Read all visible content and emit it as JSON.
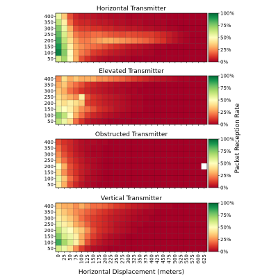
{
  "chart_data": [
    {
      "type": "heatmap",
      "title": "Horizontal Transmitter",
      "x_ticks": [
        "0",
        "25",
        "50",
        "75",
        "100",
        "125",
        "150",
        "175",
        "200",
        "225",
        "250",
        "275",
        "300",
        "325",
        "350",
        "375",
        "400",
        "425",
        "450",
        "475",
        "500",
        "525",
        "550",
        "575",
        "600",
        "625"
      ],
      "y_ticks": [
        "400",
        "350",
        "300",
        "250",
        "200",
        "150",
        "100",
        "50"
      ],
      "rows": [
        [
          0.55,
          0.35,
          0.15,
          0.08,
          0.05,
          0.05,
          0.04,
          0.03,
          0.03,
          0.02,
          0.02,
          0.02,
          0.01,
          0.01,
          0.01,
          0.01,
          0.01,
          0.01,
          0.0,
          0.0,
          0.0,
          0.0,
          0.0,
          0.0,
          0.0,
          0.0
        ],
        [
          0.65,
          0.45,
          0.2,
          0.1,
          0.08,
          0.08,
          0.06,
          0.05,
          0.05,
          0.04,
          0.03,
          0.03,
          0.02,
          0.02,
          0.02,
          0.01,
          0.01,
          0.01,
          0.01,
          0.0,
          0.0,
          0.0,
          0.0,
          0.0,
          0.0,
          0.0
        ],
        [
          0.75,
          0.55,
          0.3,
          0.15,
          0.12,
          0.12,
          0.1,
          0.1,
          0.08,
          0.08,
          0.06,
          0.06,
          0.05,
          0.05,
          0.04,
          0.03,
          0.03,
          0.02,
          0.02,
          0.01,
          0.01,
          0.0,
          0.0,
          0.0,
          0.0,
          0.0
        ],
        [
          0.8,
          0.6,
          0.35,
          0.22,
          0.18,
          0.18,
          0.2,
          0.2,
          0.18,
          0.16,
          0.15,
          0.14,
          0.15,
          0.14,
          0.13,
          0.12,
          0.12,
          0.1,
          0.08,
          0.06,
          0.04,
          0.02,
          0.01,
          0.0,
          0.0,
          0.0
        ],
        [
          0.85,
          0.65,
          0.4,
          0.28,
          0.22,
          0.22,
          0.25,
          0.28,
          0.3,
          0.3,
          0.28,
          0.26,
          0.24,
          0.22,
          0.2,
          0.18,
          0.15,
          0.12,
          0.1,
          0.06,
          0.04,
          0.02,
          0.01,
          0.0,
          0.0,
          0.0
        ],
        [
          0.9,
          0.7,
          0.45,
          0.3,
          0.25,
          0.22,
          0.2,
          0.18,
          0.15,
          0.12,
          0.1,
          0.08,
          0.06,
          0.05,
          0.04,
          0.03,
          0.02,
          0.01,
          0.01,
          0.0,
          0.0,
          0.0,
          0.0,
          0.0,
          0.0,
          0.0
        ],
        [
          0.95,
          0.75,
          0.5,
          0.3,
          0.22,
          0.18,
          0.12,
          0.1,
          0.08,
          0.06,
          0.05,
          0.04,
          0.03,
          0.02,
          0.02,
          0.01,
          0.01,
          0.0,
          0.0,
          0.0,
          0.0,
          0.0,
          0.0,
          0.0,
          0.0,
          0.0
        ],
        [
          0.6,
          0.7,
          0.5,
          0.3,
          0.15,
          0.1,
          0.06,
          0.04,
          0.03,
          0.02,
          0.02,
          0.01,
          0.01,
          0.0,
          0.0,
          0.0,
          0.0,
          0.0,
          0.0,
          0.0,
          0.0,
          0.0,
          0.0,
          0.0,
          0.0,
          0.0
        ]
      ]
    },
    {
      "type": "heatmap",
      "title": "Elevated Transmitter",
      "x_ticks": [
        "0",
        "25",
        "50",
        "75",
        "100",
        "125",
        "150",
        "175",
        "200",
        "225",
        "250",
        "275",
        "300",
        "325",
        "350",
        "375",
        "400",
        "425",
        "450",
        "475",
        "500",
        "525",
        "550",
        "575",
        "600",
        "625"
      ],
      "y_ticks": [
        "400",
        "350",
        "300",
        "250",
        "200",
        "150",
        "100",
        "50"
      ],
      "rows": [
        [
          0.25,
          0.4,
          0.3,
          0.35,
          0.3,
          0.3,
          0.3,
          0.25,
          0.25,
          0.22,
          0.2,
          0.18,
          0.15,
          0.12,
          0.1,
          0.08,
          0.06,
          0.05,
          0.04,
          0.03,
          0.02,
          0.01,
          0.01,
          0.0,
          0.0,
          0.0
        ],
        [
          0.3,
          0.35,
          0.25,
          0.2,
          0.15,
          0.1,
          0.08,
          0.06,
          0.05,
          0.04,
          0.03,
          0.02,
          0.02,
          0.01,
          0.01,
          0.0,
          0.0,
          0.0,
          0.0,
          0.0,
          0.0,
          0.0,
          0.0,
          0.0,
          0.0,
          0.0
        ],
        [
          0.35,
          0.3,
          0.2,
          0.15,
          0.1,
          0.08,
          0.06,
          0.05,
          0.04,
          0.03,
          0.02,
          0.02,
          0.01,
          0.01,
          0.0,
          0.0,
          0.0,
          0.0,
          0.0,
          0.0,
          0.0,
          0.0,
          0.0,
          0.0,
          0.0,
          0.0
        ],
        [
          0.4,
          0.35,
          0.3,
          0.25,
          0.45,
          0.15,
          0.1,
          0.08,
          0.06,
          0.05,
          0.04,
          0.03,
          0.02,
          0.01,
          0.01,
          0.0,
          0.0,
          0.0,
          0.0,
          0.0,
          0.0,
          0.0,
          0.0,
          0.0,
          0.0,
          0.0
        ],
        [
          0.45,
          0.4,
          0.45,
          0.4,
          0.35,
          0.12,
          0.1,
          0.08,
          0.06,
          0.05,
          0.04,
          0.03,
          0.02,
          0.01,
          0.01,
          0.0,
          0.0,
          0.0,
          0.0,
          0.0,
          0.0,
          0.0,
          0.0,
          0.0,
          0.0,
          0.0
        ],
        [
          0.55,
          0.5,
          0.45,
          0.35,
          0.25,
          0.2,
          0.15,
          0.1,
          0.08,
          0.06,
          0.04,
          0.03,
          0.02,
          0.01,
          0.01,
          0.0,
          0.0,
          0.0,
          0.0,
          0.0,
          0.0,
          0.0,
          0.0,
          0.0,
          0.0,
          0.0
        ],
        [
          0.75,
          0.65,
          0.5,
          0.3,
          0.2,
          0.12,
          0.08,
          0.06,
          0.04,
          0.03,
          0.02,
          0.01,
          0.01,
          0.0,
          0.0,
          0.0,
          0.0,
          0.0,
          0.0,
          0.0,
          0.0,
          0.0,
          0.0,
          0.0,
          0.0,
          0.0
        ],
        [
          0.65,
          0.55,
          0.4,
          0.2,
          0.1,
          0.05,
          0.03,
          0.02,
          0.01,
          0.0,
          0.0,
          0.0,
          0.0,
          0.0,
          0.0,
          0.0,
          0.0,
          0.0,
          0.0,
          0.0,
          0.0,
          0.0,
          0.0,
          0.0,
          0.0,
          0.0
        ]
      ]
    },
    {
      "type": "heatmap",
      "title": "Obstructed Transmitter",
      "x_ticks": [
        "0",
        "25",
        "50",
        "75",
        "100",
        "125",
        "150",
        "175",
        "200",
        "225",
        "250",
        "275",
        "300",
        "325",
        "350",
        "375",
        "400",
        "425",
        "450",
        "475",
        "500",
        "525",
        "550",
        "575",
        "600",
        "625"
      ],
      "y_ticks": [
        "400",
        "350",
        "300",
        "250",
        "200",
        "150",
        "100",
        "50"
      ],
      "rows": [
        [
          0.15,
          0.1,
          0.08,
          0.05,
          0.03,
          0.02,
          0.02,
          0.01,
          0.01,
          0.0,
          0.0,
          0.0,
          0.0,
          0.0,
          0.0,
          0.0,
          0.0,
          0.0,
          0.0,
          0.0,
          0.0,
          0.0,
          0.0,
          0.0,
          0.0,
          0.0
        ],
        [
          0.2,
          0.12,
          0.08,
          0.05,
          0.03,
          0.02,
          0.01,
          0.01,
          0.0,
          0.0,
          0.0,
          0.0,
          0.0,
          0.0,
          0.0,
          0.0,
          0.0,
          0.0,
          0.0,
          0.0,
          0.0,
          0.0,
          0.0,
          0.0,
          0.0,
          0.0
        ],
        [
          0.25,
          0.15,
          0.1,
          0.06,
          0.04,
          0.02,
          0.01,
          0.01,
          0.0,
          0.0,
          0.0,
          0.0,
          0.0,
          0.0,
          0.0,
          0.0,
          0.0,
          0.0,
          0.0,
          0.0,
          0.0,
          0.0,
          0.0,
          0.0,
          0.0,
          0.0
        ],
        [
          0.3,
          0.2,
          0.12,
          0.08,
          0.05,
          0.03,
          0.02,
          0.01,
          0.0,
          0.0,
          0.0,
          0.0,
          0.0,
          0.0,
          0.0,
          0.0,
          0.0,
          0.0,
          0.0,
          0.0,
          0.0,
          0.0,
          0.0,
          0.0,
          0.0,
          0.0
        ],
        [
          0.5,
          0.3,
          0.15,
          0.1,
          0.06,
          0.04,
          0.02,
          0.01,
          0.0,
          0.0,
          0.0,
          0.0,
          0.0,
          0.0,
          0.0,
          0.0,
          0.0,
          0.0,
          0.0,
          0.0,
          0.0,
          0.0,
          0.0,
          0.0,
          0.0,
          null
        ],
        [
          0.4,
          0.25,
          0.15,
          0.1,
          0.06,
          0.04,
          0.02,
          0.01,
          0.0,
          0.0,
          0.0,
          0.0,
          0.0,
          0.0,
          0.0,
          0.0,
          0.0,
          0.0,
          0.0,
          0.0,
          0.0,
          0.0,
          0.0,
          0.0,
          0.0,
          0.0
        ],
        [
          0.55,
          0.35,
          0.2,
          0.12,
          0.06,
          0.03,
          0.02,
          0.01,
          0.0,
          0.0,
          0.0,
          0.0,
          0.0,
          0.0,
          0.0,
          0.0,
          0.0,
          0.0,
          0.0,
          0.0,
          0.0,
          0.0,
          0.0,
          0.0,
          0.0,
          0.0
        ],
        [
          0.45,
          0.3,
          0.15,
          0.08,
          0.04,
          0.02,
          0.01,
          0.0,
          0.0,
          0.0,
          0.0,
          0.0,
          0.0,
          0.0,
          0.0,
          0.0,
          0.0,
          0.0,
          0.0,
          0.0,
          0.0,
          0.0,
          0.0,
          0.0,
          0.0,
          0.0
        ]
      ]
    },
    {
      "type": "heatmap",
      "title": "Vertical Transmitter",
      "x_ticks": [
        "0",
        "25",
        "50",
        "75",
        "100",
        "125",
        "150",
        "175",
        "200",
        "225",
        "250",
        "275",
        "300",
        "325",
        "350",
        "375",
        "400",
        "425",
        "450",
        "475",
        "500",
        "525",
        "550",
        "575",
        "600",
        "625"
      ],
      "y_ticks": [
        "400",
        "350",
        "300",
        "250",
        "200",
        "150",
        "100",
        "50"
      ],
      "rows": [
        [
          0.35,
          0.3,
          0.3,
          0.25,
          0.3,
          0.25,
          0.2,
          0.2,
          0.18,
          0.15,
          0.12,
          0.1,
          0.08,
          0.06,
          0.05,
          0.04,
          0.03,
          0.02,
          0.01,
          0.01,
          0.0,
          0.0,
          0.0,
          0.0,
          0.0,
          0.0
        ],
        [
          0.4,
          0.35,
          0.3,
          0.25,
          0.22,
          0.18,
          0.15,
          0.12,
          0.1,
          0.08,
          0.06,
          0.05,
          0.04,
          0.03,
          0.02,
          0.01,
          0.01,
          0.0,
          0.0,
          0.0,
          0.0,
          0.0,
          0.0,
          0.0,
          0.0,
          0.0
        ],
        [
          0.45,
          0.4,
          0.35,
          0.28,
          0.2,
          0.15,
          0.12,
          0.1,
          0.08,
          0.06,
          0.05,
          0.04,
          0.03,
          0.02,
          0.01,
          0.01,
          0.0,
          0.0,
          0.0,
          0.0,
          0.0,
          0.0,
          0.0,
          0.0,
          0.0,
          0.0
        ],
        [
          0.55,
          0.45,
          0.4,
          0.3,
          0.25,
          0.18,
          0.12,
          0.1,
          0.08,
          0.06,
          0.04,
          0.03,
          0.02,
          0.01,
          0.01,
          0.0,
          0.0,
          0.0,
          0.0,
          0.0,
          0.0,
          0.0,
          0.0,
          0.0,
          0.0,
          0.0
        ],
        [
          0.65,
          0.55,
          0.5,
          0.4,
          0.35,
          0.25,
          0.15,
          0.1,
          0.08,
          0.06,
          0.04,
          0.03,
          0.02,
          0.01,
          0.0,
          0.0,
          0.0,
          0.0,
          0.0,
          0.0,
          0.0,
          0.0,
          0.0,
          0.0,
          0.0,
          0.0
        ],
        [
          0.75,
          0.6,
          0.55,
          0.45,
          0.3,
          0.2,
          0.12,
          0.08,
          0.05,
          0.03,
          0.02,
          0.01,
          0.0,
          0.0,
          0.0,
          0.0,
          0.0,
          0.0,
          0.0,
          0.0,
          0.0,
          0.0,
          0.0,
          0.0,
          0.0,
          0.0
        ],
        [
          0.85,
          0.7,
          0.6,
          0.45,
          0.3,
          0.15,
          0.08,
          0.05,
          0.03,
          0.02,
          0.01,
          0.0,
          0.0,
          0.0,
          0.0,
          0.0,
          0.0,
          0.0,
          0.0,
          0.0,
          0.0,
          0.0,
          0.0,
          0.0,
          0.0,
          0.0
        ],
        [
          0.6,
          0.55,
          0.4,
          0.25,
          0.12,
          0.06,
          0.03,
          0.02,
          0.01,
          0.0,
          0.0,
          0.0,
          0.0,
          0.0,
          0.0,
          0.0,
          0.0,
          0.0,
          0.0,
          0.0,
          0.0,
          0.0,
          0.0,
          0.0,
          0.0,
          0.0
        ]
      ]
    }
  ],
  "x_axis_label": "Horizontal Displacement (meters)",
  "colorbar": {
    "label": "Packet Reception Rate",
    "ticks": [
      "100%",
      "75%",
      "50%",
      "25%",
      "0%"
    ],
    "tick_values": [
      1.0,
      0.75,
      0.5,
      0.25,
      0.0
    ],
    "colors": [
      "#a50026",
      "#d73027",
      "#f46d43",
      "#fdae61",
      "#fee08b",
      "#ffffbf",
      "#d9ef8b",
      "#a6d96a",
      "#66bd63",
      "#1a9850",
      "#006837"
    ]
  }
}
